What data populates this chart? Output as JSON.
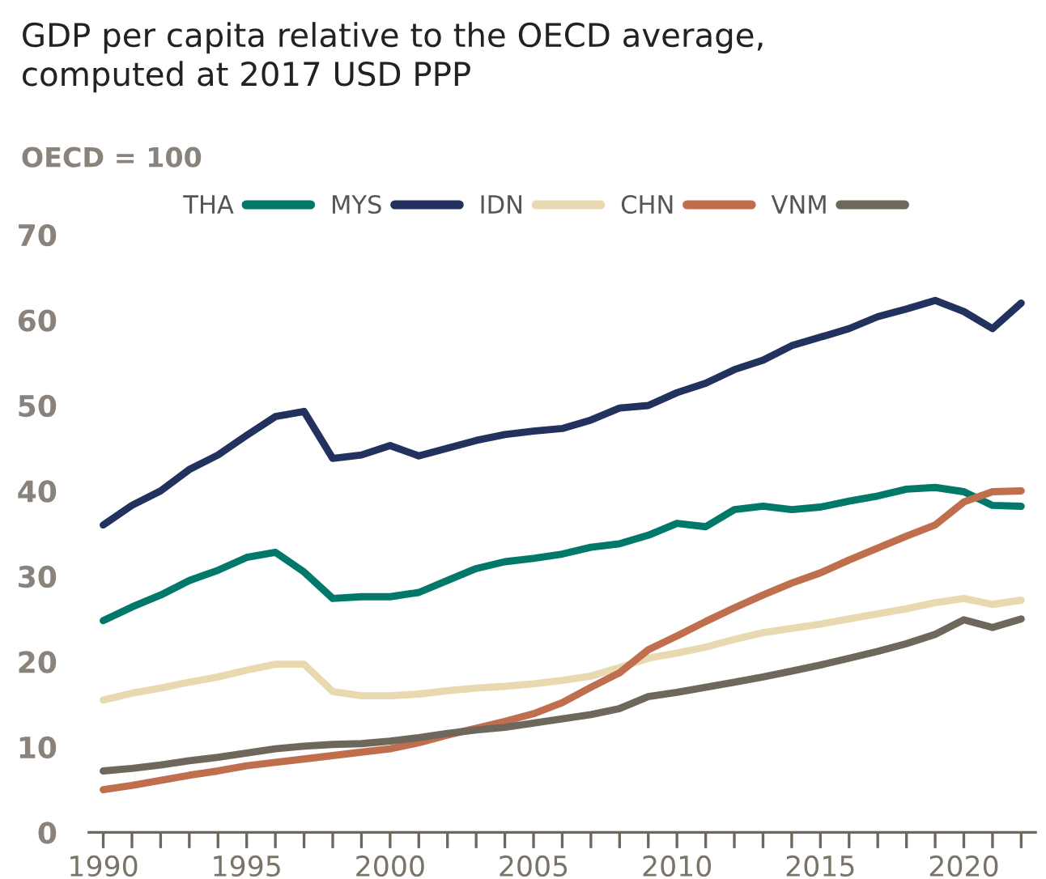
{
  "chart_data": {
    "type": "line",
    "title": "GDP per capita relative to the OECD average,\ncomputed at 2017 USD PPP",
    "ylabel": "OECD = 100",
    "x": [
      1990,
      1991,
      1992,
      1993,
      1994,
      1995,
      1996,
      1997,
      1998,
      1999,
      2000,
      2001,
      2002,
      2003,
      2004,
      2005,
      2006,
      2007,
      2008,
      2009,
      2010,
      2011,
      2012,
      2013,
      2014,
      2015,
      2016,
      2017,
      2018,
      2019,
      2020,
      2021,
      2022
    ],
    "series": [
      {
        "name": "THA",
        "color": "#00796b",
        "values": [
          24.8,
          26.4,
          27.8,
          29.5,
          30.7,
          32.2,
          32.8,
          30.5,
          27.4,
          27.6,
          27.6,
          28.1,
          29.5,
          30.9,
          31.7,
          32.1,
          32.6,
          33.4,
          33.8,
          34.8,
          36.2,
          35.8,
          37.8,
          38.2,
          37.8,
          38.1,
          38.8,
          39.4,
          40.2,
          40.4,
          39.9,
          38.3,
          38.2
        ]
      },
      {
        "name": "MYS",
        "color": "#23315e",
        "values": [
          36,
          38.3,
          40,
          42.5,
          44.2,
          46.5,
          48.7,
          49.3,
          43.8,
          44.2,
          45.3,
          44.1,
          45,
          45.9,
          46.6,
          47,
          47.3,
          48.3,
          49.7,
          50,
          51.5,
          52.6,
          54.2,
          55.3,
          57,
          58,
          59,
          60.4,
          61.3,
          62.3,
          61,
          59,
          62
        ]
      },
      {
        "name": "IDN",
        "color": "#e8d9b0",
        "values": [
          15.5,
          16.3,
          16.9,
          17.6,
          18.2,
          19,
          19.7,
          19.7,
          16.5,
          16,
          16,
          16.2,
          16.6,
          16.9,
          17.1,
          17.4,
          17.8,
          18.3,
          19.3,
          20.4,
          21,
          21.7,
          22.6,
          23.4,
          23.9,
          24.4,
          25,
          25.6,
          26.2,
          26.9,
          27.4,
          26.7,
          27.2
        ]
      },
      {
        "name": "CHN",
        "color": "#c06f4e",
        "values": [
          5,
          5.5,
          6.1,
          6.7,
          7.2,
          7.8,
          8.2,
          8.6,
          9,
          9.4,
          9.8,
          10.5,
          11.4,
          12.2,
          13,
          13.9,
          15.2,
          17,
          18.7,
          21.4,
          23,
          24.7,
          26.3,
          27.8,
          29.2,
          30.4,
          31.9,
          33.3,
          34.7,
          36,
          38.7,
          39.9,
          40
        ]
      },
      {
        "name": "VNM",
        "color": "#6e675c",
        "values": [
          7.2,
          7.5,
          7.9,
          8.4,
          8.8,
          9.3,
          9.8,
          10.1,
          10.3,
          10.4,
          10.7,
          11.1,
          11.6,
          12,
          12.3,
          12.8,
          13.3,
          13.8,
          14.5,
          15.9,
          16.4,
          17,
          17.6,
          18.2,
          18.9,
          19.6,
          20.4,
          21.2,
          22.1,
          23.2,
          24.9,
          24,
          25
        ]
      }
    ],
    "xlim": [
      1989.5,
      2022.5
    ],
    "ylim": [
      0,
      70
    ],
    "xticks": [
      1990,
      {
        "value": 1991,
        "label": null
      },
      {
        "value": 1992,
        "label": null
      },
      {
        "value": 1993,
        "label": null
      },
      {
        "value": 1994,
        "label": null
      },
      1995,
      {
        "value": 1996,
        "label": null
      },
      {
        "value": 1997,
        "label": null
      },
      {
        "value": 1998,
        "label": null
      },
      {
        "value": 1999,
        "label": null
      },
      2000,
      {
        "value": 2001,
        "label": null
      },
      {
        "value": 2002,
        "label": null
      },
      {
        "value": 2003,
        "label": null
      },
      {
        "value": 2004,
        "label": null
      },
      2005,
      {
        "value": 2006,
        "label": null
      },
      {
        "value": 2007,
        "label": null
      },
      {
        "value": 2008,
        "label": null
      },
      {
        "value": 2009,
        "label": null
      },
      2010,
      {
        "value": 2011,
        "label": null
      },
      {
        "value": 2012,
        "label": null
      },
      {
        "value": 2013,
        "label": null
      },
      {
        "value": 2014,
        "label": null
      },
      2015,
      {
        "value": 2016,
        "label": null
      },
      {
        "value": 2017,
        "label": null
      },
      {
        "value": 2018,
        "label": null
      },
      {
        "value": 2019,
        "label": null
      },
      2020,
      {
        "value": 2021,
        "label": null
      },
      {
        "value": 2022,
        "label": null
      }
    ],
    "yticks": [
      0,
      10,
      20,
      30,
      40,
      50,
      60,
      70
    ],
    "legend": "top",
    "grid": false,
    "marker": "none",
    "line_style": "solid"
  }
}
